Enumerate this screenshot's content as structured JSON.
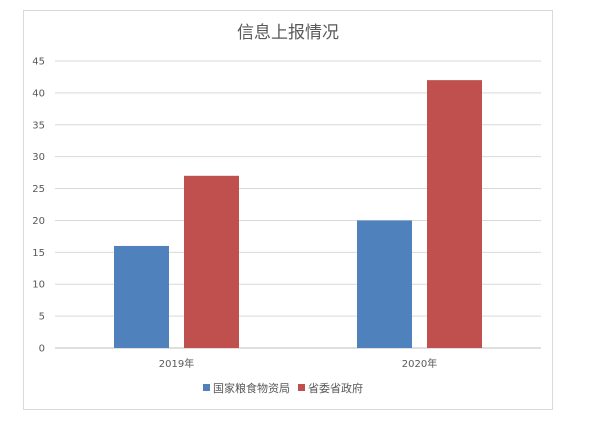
{
  "chart_data": {
    "type": "bar",
    "title": "信息上报情况",
    "xlabel": "",
    "ylabel": "",
    "categories": [
      "2019年",
      "2020年"
    ],
    "series": [
      {
        "name": "国家粮食物资局",
        "values": [
          16,
          20
        ],
        "color": "#4F81BD"
      },
      {
        "name": "省委省政府",
        "values": [
          27,
          42
        ],
        "color": "#C0504D"
      }
    ],
    "ylim": [
      0,
      45
    ],
    "yticks": [
      0,
      5,
      10,
      15,
      20,
      25,
      30,
      35,
      40,
      45
    ],
    "grid": true,
    "legend_position": "bottom"
  }
}
